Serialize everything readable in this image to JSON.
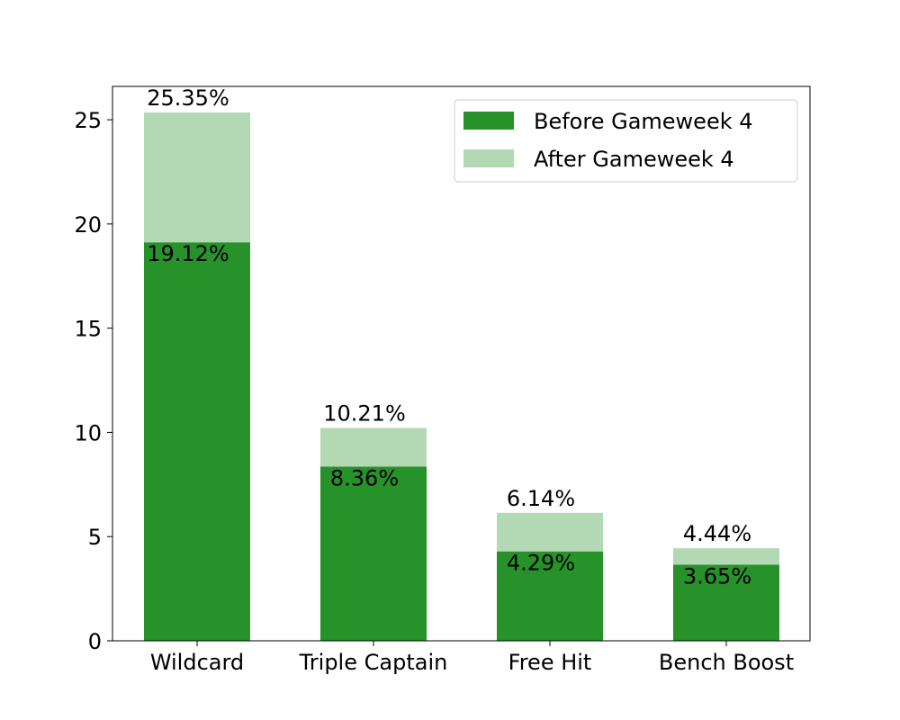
{
  "chart_data": {
    "type": "bar",
    "stacked": true,
    "categories": [
      "Wildcard",
      "Triple Captain",
      "Free Hit",
      "Bench Boost"
    ],
    "series": [
      {
        "name": "Before Gameweek 4",
        "values": [
          19.12,
          8.36,
          4.29,
          3.65
        ],
        "labels": [
          "19.12%",
          "8.36%",
          "4.29%",
          "3.65%"
        ],
        "color": "#27922a"
      },
      {
        "name": "After Gameweek 4",
        "values": [
          6.23,
          1.85,
          1.85,
          0.79
        ],
        "labels": [
          "25.35%",
          "10.21%",
          "6.14%",
          "4.44%"
        ],
        "color": "#b3d9b4"
      }
    ],
    "totals": [
      25.35,
      10.21,
      6.14,
      4.44
    ],
    "title": "",
    "xlabel": "",
    "ylabel": "",
    "ylim": [
      0,
      26.6
    ],
    "yticks": [
      "0",
      "5",
      "10",
      "15",
      "20",
      "25"
    ],
    "grid": false,
    "legend_position": "top-right"
  }
}
